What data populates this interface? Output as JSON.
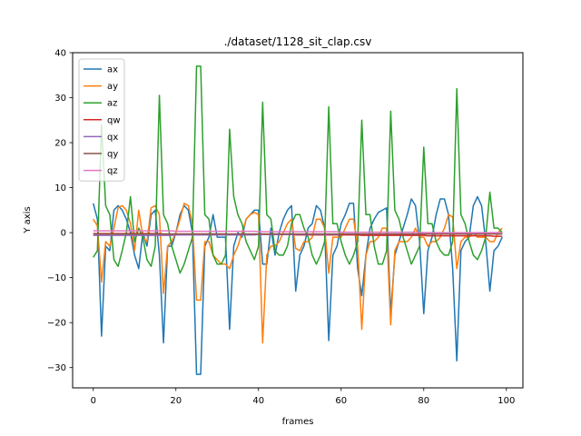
{
  "chart_data": {
    "type": "line",
    "title": "./dataset/1128_sit_clap.csv",
    "xlabel": "frames",
    "ylabel": "Y axis",
    "xlim": [
      -5,
      104
    ],
    "ylim": [
      -34.5,
      40
    ],
    "xticks": [
      0,
      20,
      40,
      60,
      80,
      100
    ],
    "yticks": [
      -30,
      -20,
      -10,
      0,
      10,
      20,
      30,
      40
    ],
    "legend_position": "top-left",
    "grid": false,
    "series": [
      {
        "name": "ax",
        "color": "#1f77b4",
        "values": [
          6.5,
          3,
          -23,
          -3,
          -4,
          5,
          6,
          5,
          3,
          0,
          -5,
          -8,
          0,
          -3,
          4,
          5,
          -5,
          -24.5,
          -3,
          -3,
          0,
          4,
          6,
          5,
          0,
          -31.5,
          -31.5,
          -3,
          -1,
          4,
          -1,
          -1,
          -1,
          -21.5,
          -3,
          0,
          -1,
          3,
          4,
          5,
          5,
          -7,
          -7,
          1,
          -5,
          0,
          3,
          5,
          6,
          -13,
          -5,
          -3,
          1,
          2,
          6,
          5,
          1,
          -24,
          -5,
          -3,
          2,
          4,
          6.5,
          6.5,
          -8,
          -14,
          -5,
          1,
          3,
          4.5,
          5,
          5.5,
          -18,
          -5,
          -2,
          1,
          4,
          7.5,
          6,
          -2,
          -18,
          -4,
          -1,
          4,
          7.5,
          7.5,
          4,
          -8,
          -28.5,
          -4,
          -2,
          -1,
          6,
          8,
          6,
          -2,
          -13,
          -4,
          -3,
          -1
        ]
      },
      {
        "name": "ay",
        "color": "#ff7f0e",
        "values": [
          3,
          1.5,
          -11,
          -2,
          -3,
          1,
          5.5,
          6,
          5,
          2,
          -4,
          5,
          -1,
          -2,
          5.5,
          6,
          4,
          -13.5,
          -3,
          -2,
          0,
          3,
          6.5,
          6,
          2,
          -15,
          -15,
          -2,
          -2,
          -5,
          -6,
          -7,
          -7,
          -8,
          -5,
          -3,
          0,
          3,
          4,
          4.5,
          4,
          -24.5,
          -5,
          -3,
          -3,
          -2,
          0,
          2,
          3,
          -3.5,
          -4,
          -2,
          -2,
          -1,
          3,
          3,
          1,
          -9,
          -1,
          -1,
          -1,
          1,
          3,
          3,
          -3,
          -21.5,
          -5,
          -2,
          -2,
          -1,
          1,
          1,
          -20.5,
          -4,
          -2,
          -2,
          -2,
          -1,
          1,
          -1,
          -1,
          -3,
          -2,
          -2,
          -1,
          1,
          4,
          3.5,
          -8,
          -2,
          -1,
          -1,
          0,
          -1,
          -1,
          -1,
          -2,
          -2,
          0,
          1
        ]
      },
      {
        "name": "az",
        "color": "#2ca02c",
        "values": [
          -5.5,
          -4,
          24,
          6,
          4,
          -6,
          -7.5,
          -4,
          0,
          8,
          -2,
          1,
          -1,
          -6,
          -7.5,
          -3,
          30.5,
          4,
          2,
          -3,
          -6,
          -9,
          -7,
          -4,
          -1,
          37,
          37,
          4,
          3,
          -5,
          -7,
          -7,
          -5,
          23,
          8,
          4,
          2,
          -2,
          -4,
          -6,
          -3,
          29,
          4,
          3,
          -4,
          -5,
          -5,
          -3,
          2,
          4,
          4,
          1,
          -1,
          -5,
          -7,
          -5,
          -2,
          28,
          2,
          2,
          -2,
          -5,
          -7,
          -5,
          -2,
          25,
          4,
          4,
          -3,
          -7,
          -7,
          -4,
          27,
          5,
          3,
          -1,
          -4,
          -7,
          -5,
          -3,
          19,
          2,
          2,
          -2,
          -4,
          -5,
          -5,
          -2,
          32,
          4,
          2,
          -2,
          -5,
          -6,
          -4,
          -1,
          9,
          1,
          1,
          0
        ]
      },
      {
        "name": "qw",
        "color": "#d62728",
        "values": [
          -0.2,
          -0.2,
          -0.2,
          -0.2,
          -0.2,
          -0.2,
          -0.2,
          -0.2,
          -0.2,
          -0.2,
          -0.2,
          -0.2,
          -0.2,
          -0.2,
          -0.2,
          -0.2,
          -0.2,
          -0.3,
          -0.3,
          -0.3,
          -0.3,
          -0.3,
          -0.3,
          -0.3,
          -0.3,
          -0.3,
          -0.3,
          -0.3,
          -0.3,
          -0.3,
          -0.3,
          -0.3,
          -0.3,
          -0.4,
          -0.4,
          -0.4,
          -0.4,
          -0.4,
          -0.4,
          -0.4,
          -0.4,
          -0.4,
          -0.4,
          -0.4,
          -0.4,
          -0.4,
          -0.4,
          -0.4,
          -0.4,
          -0.5,
          -0.5,
          -0.5,
          -0.5,
          -0.5,
          -0.5,
          -0.5,
          -0.5,
          -0.5,
          -0.5,
          -0.5,
          -0.5,
          -0.5,
          -0.5,
          -0.5,
          -0.5,
          -0.6,
          -0.6,
          -0.6,
          -0.6,
          -0.6,
          -0.6,
          -0.6,
          -0.6,
          -0.6,
          -0.6,
          -0.6,
          -0.6,
          -0.6,
          -0.6,
          -0.6,
          -0.6,
          -0.7,
          -0.7,
          -0.7,
          -0.7,
          -0.7,
          -0.7,
          -0.7,
          -0.7,
          -0.7,
          -0.7,
          -0.7,
          -0.7,
          -0.7,
          -0.7,
          -0.7,
          -0.7,
          -0.8,
          -0.8,
          -0.8
        ]
      },
      {
        "name": "qx",
        "color": "#9467bd",
        "values": [
          -0.6,
          -0.6,
          -0.6,
          -0.6,
          -0.6,
          -0.6,
          -0.6,
          -0.6,
          -0.6,
          -0.6,
          -0.6,
          -0.6,
          -0.6,
          -0.6,
          -0.6,
          -0.6,
          -0.6,
          -0.6,
          -0.6,
          -0.6,
          -0.5,
          -0.5,
          -0.5,
          -0.5,
          -0.5,
          -0.5,
          -0.5,
          -0.5,
          -0.5,
          -0.5,
          -0.5,
          -0.5,
          -0.5,
          -0.5,
          -0.5,
          -0.5,
          -0.5,
          -0.5,
          -0.5,
          -0.5,
          -0.4,
          -0.4,
          -0.4,
          -0.4,
          -0.4,
          -0.4,
          -0.4,
          -0.4,
          -0.4,
          -0.4,
          -0.4,
          -0.4,
          -0.4,
          -0.4,
          -0.4,
          -0.4,
          -0.4,
          -0.4,
          -0.4,
          -0.4,
          -0.3,
          -0.3,
          -0.3,
          -0.3,
          -0.3,
          -0.3,
          -0.3,
          -0.3,
          -0.3,
          -0.3,
          -0.3,
          -0.3,
          -0.3,
          -0.3,
          -0.3,
          -0.3,
          -0.3,
          -0.3,
          -0.3,
          -0.3,
          -0.2,
          -0.2,
          -0.2,
          -0.2,
          -0.2,
          -0.2,
          -0.2,
          -0.2,
          -0.2,
          -0.2,
          -0.2,
          -0.2,
          -0.2,
          -0.2,
          -0.2,
          -0.2,
          -0.2,
          -0.2,
          -0.2,
          -0.2
        ]
      },
      {
        "name": "qy",
        "color": "#8c564b",
        "values": [
          -0.3,
          -0.3,
          -0.3,
          -0.3,
          -0.3,
          -0.3,
          -0.3,
          -0.3,
          -0.3,
          -0.3,
          -0.3,
          -0.3,
          -0.3,
          -0.3,
          -0.3,
          -0.3,
          -0.3,
          -0.3,
          -0.3,
          -0.3,
          -0.3,
          -0.3,
          -0.3,
          -0.3,
          -0.3,
          -0.3,
          -0.3,
          -0.3,
          -0.3,
          -0.3,
          -0.3,
          -0.3,
          -0.3,
          -0.3,
          -0.3,
          -0.3,
          -0.3,
          -0.3,
          -0.3,
          -0.3,
          -0.3,
          -0.3,
          -0.3,
          -0.3,
          -0.3,
          -0.3,
          -0.3,
          -0.3,
          -0.3,
          -0.3,
          -0.3,
          -0.3,
          -0.3,
          -0.3,
          -0.3,
          -0.3,
          -0.3,
          -0.3,
          -0.3,
          -0.3,
          -0.3,
          -0.3,
          -0.3,
          -0.3,
          -0.3,
          -0.3,
          -0.3,
          -0.3,
          -0.3,
          -0.3,
          -0.3,
          -0.3,
          -0.3,
          -0.3,
          -0.3,
          -0.3,
          -0.3,
          -0.3,
          -0.3,
          -0.3,
          -0.3,
          -0.3,
          -0.3,
          -0.3,
          -0.3,
          -0.3,
          -0.3,
          -0.3,
          -0.3,
          -0.3,
          -0.3,
          -0.3,
          -0.3,
          -0.3,
          -0.3,
          -0.3,
          -0.3,
          -0.3,
          -0.3,
          -0.3
        ]
      },
      {
        "name": "qz",
        "color": "#e377c2",
        "values": [
          0.4,
          0.4,
          0.4,
          0.4,
          0.4,
          0.4,
          0.4,
          0.4,
          0.4,
          0.4,
          0.4,
          0.4,
          0.4,
          0.4,
          0.4,
          0.4,
          0.4,
          0.4,
          0.4,
          0.4,
          0.3,
          0.3,
          0.3,
          0.3,
          0.3,
          0.3,
          0.3,
          0.3,
          0.3,
          0.3,
          0.3,
          0.3,
          0.3,
          0.3,
          0.3,
          0.3,
          0.3,
          0.3,
          0.3,
          0.3,
          0.2,
          0.2,
          0.2,
          0.2,
          0.2,
          0.2,
          0.2,
          0.2,
          0.2,
          0.2,
          0.2,
          0.2,
          0.2,
          0.2,
          0.2,
          0.2,
          0.2,
          0.2,
          0.2,
          0.2,
          0.1,
          0.1,
          0.1,
          0.1,
          0.1,
          0.1,
          0.1,
          0.1,
          0.1,
          0.1,
          0.1,
          0.1,
          0.1,
          0.1,
          0.1,
          0.1,
          0.1,
          0.1,
          0.1,
          0.1,
          0.0,
          0.0,
          0.0,
          0.0,
          0.0,
          0.0,
          0.0,
          0.0,
          0.0,
          0.0,
          0.0,
          0.0,
          0.0,
          0.0,
          0.0,
          0.0,
          0.0,
          0.0,
          0.0,
          0.0
        ]
      }
    ]
  }
}
